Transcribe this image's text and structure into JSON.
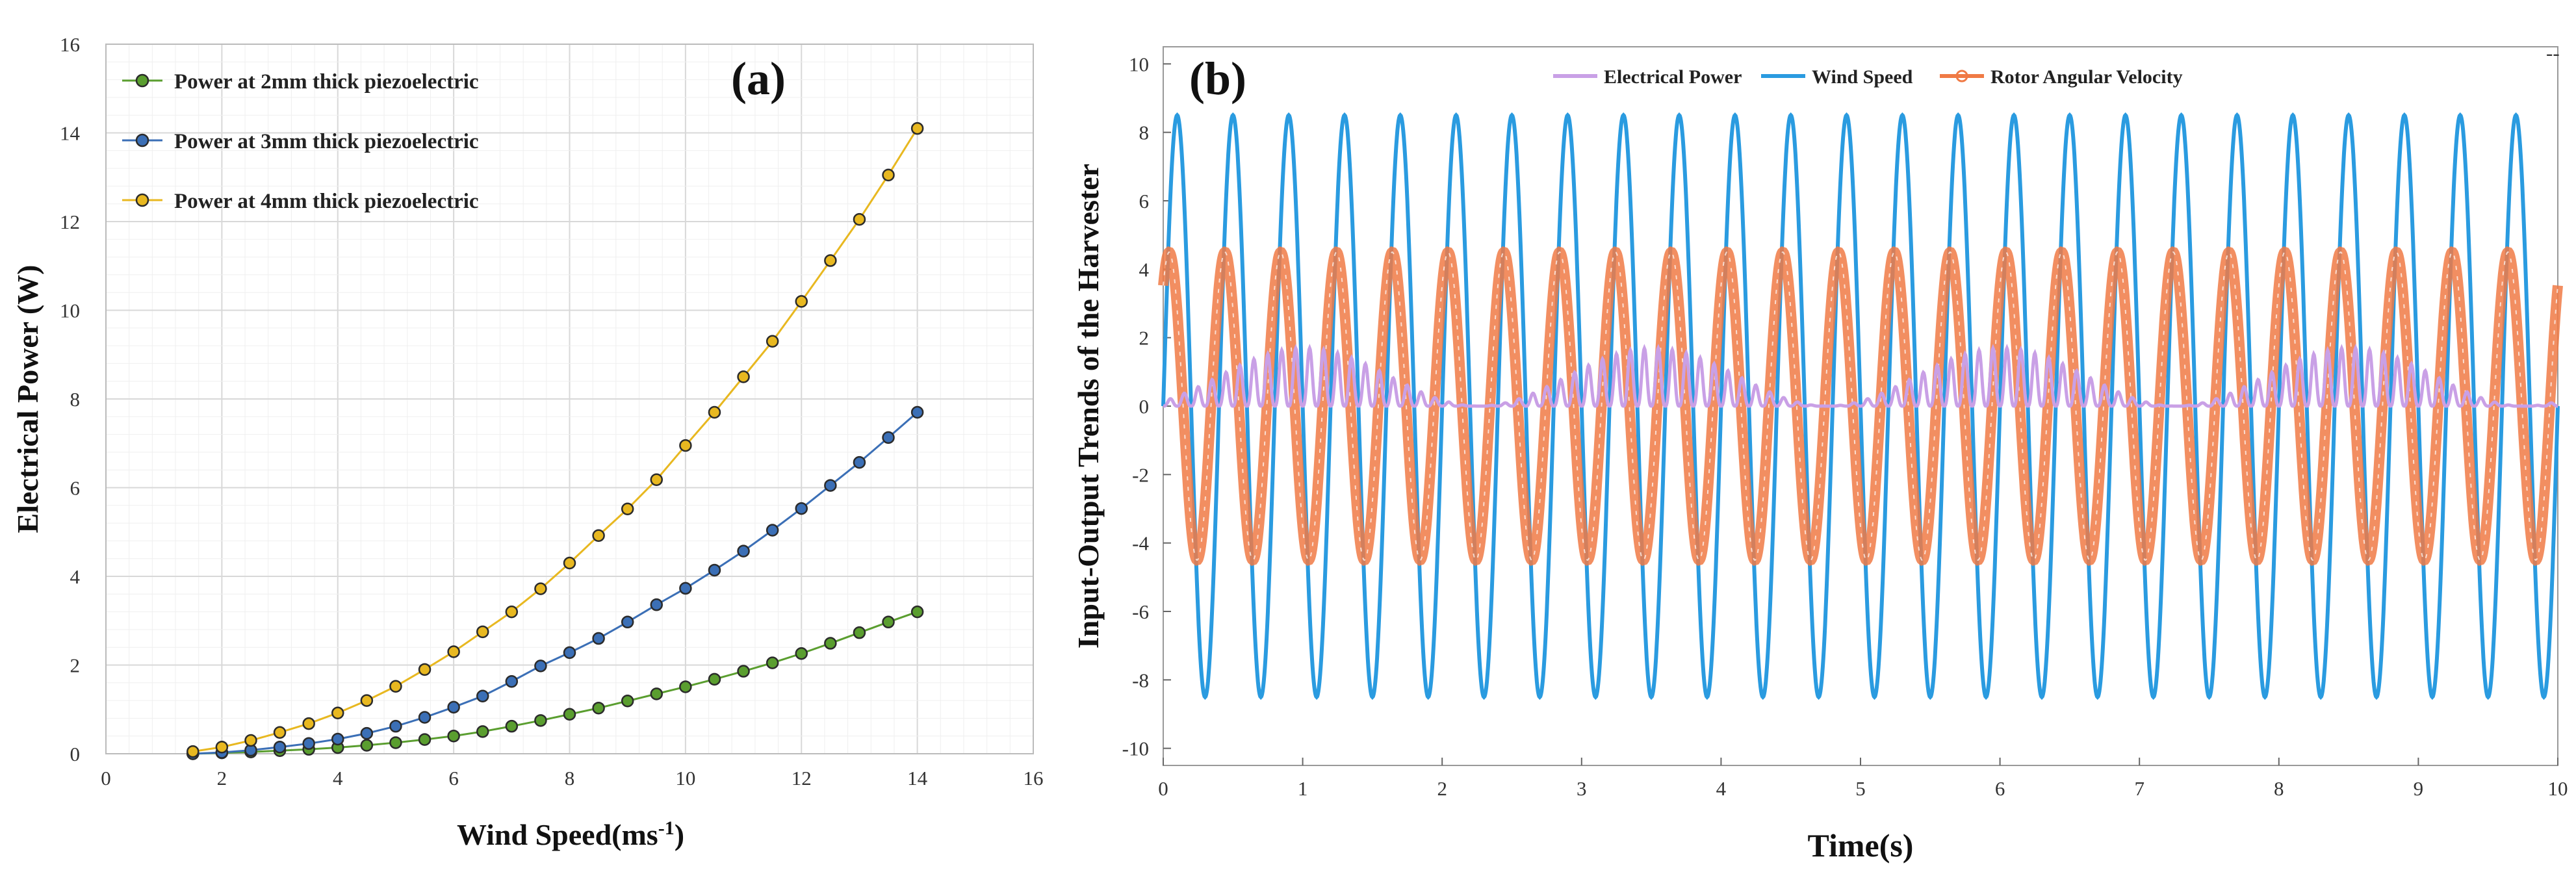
{
  "chart_data": [
    {
      "type": "line",
      "panel_label": "(a)",
      "xlabel": "Wind Speed(ms",
      "xlabel_sup": "-1",
      "xlabel_end": ")",
      "ylabel": "Electrical Power (W)",
      "xlim": [
        0,
        16
      ],
      "ylim": [
        0,
        16
      ],
      "xticks": [
        0,
        2,
        4,
        6,
        8,
        10,
        12,
        14,
        16
      ],
      "yticks": [
        0,
        2,
        4,
        6,
        8,
        10,
        12,
        14,
        16
      ],
      "grid": true,
      "legend_position": "top-left",
      "x": [
        1.5,
        2,
        2.5,
        3,
        3.5,
        4,
        4.5,
        5,
        5.5,
        6,
        6.5,
        7,
        7.5,
        8,
        8.5,
        9,
        9.5,
        10,
        10.5,
        11,
        11.5,
        12,
        12.5,
        13,
        13.5,
        14
      ],
      "series": [
        {
          "name": "Power at 2mm thick piezoelectric",
          "color": "#5a9e2f",
          "values": [
            0.0,
            0.02,
            0.04,
            0.07,
            0.1,
            0.14,
            0.19,
            0.25,
            0.32,
            0.4,
            0.5,
            0.62,
            0.75,
            0.89,
            1.03,
            1.19,
            1.35,
            1.51,
            1.68,
            1.86,
            2.05,
            2.26,
            2.49,
            2.73,
            2.97,
            3.2
          ]
        },
        {
          "name": "Power at 3mm thick piezoelectric",
          "color": "#3b6fb6",
          "values": [
            0.0,
            0.03,
            0.08,
            0.15,
            0.23,
            0.33,
            0.46,
            0.62,
            0.82,
            1.05,
            1.3,
            1.63,
            1.98,
            2.28,
            2.6,
            2.97,
            3.36,
            3.73,
            4.14,
            4.57,
            5.04,
            5.53,
            6.05,
            6.57,
            7.13,
            7.7
          ]
        },
        {
          "name": "Power at 4mm thick piezoelectric",
          "color": "#e8b820",
          "values": [
            0.05,
            0.15,
            0.3,
            0.48,
            0.68,
            0.92,
            1.2,
            1.52,
            1.9,
            2.3,
            2.75,
            3.2,
            3.72,
            4.3,
            4.92,
            5.52,
            6.18,
            6.95,
            7.7,
            8.5,
            9.3,
            10.2,
            11.12,
            12.05,
            13.05,
            14.1
          ]
        }
      ]
    },
    {
      "type": "line",
      "panel_label": "(b)",
      "xlabel": "Time(s)",
      "ylabel": "Input-Output Trends of the Harvester",
      "xlim": [
        0,
        10
      ],
      "ylim": [
        -10.5,
        10.5
      ],
      "xticks": [
        0,
        1,
        2,
        3,
        4,
        5,
        6,
        7,
        8,
        9,
        10
      ],
      "yticks": [
        -10,
        -8,
        -6,
        -4,
        -2,
        0,
        2,
        4,
        6,
        8,
        10
      ],
      "grid": false,
      "legend_position": "top-center",
      "corner_mark": "--",
      "series": [
        {
          "name": "Electrical Power",
          "color": "#c9a0e6",
          "amplitude": 1.7,
          "frequency_hz": 2.5,
          "description_values": {
            "min": 0,
            "max": 1.7
          }
        },
        {
          "name": "Wind Speed",
          "color": "#2a9be0",
          "amplitude": 8.5,
          "frequency_hz": 2.5,
          "description_values": {
            "min": -8.5,
            "max": 8.5
          }
        },
        {
          "name": "Rotor Angular Velocity",
          "color": "#f07a45",
          "amplitude": 4.5,
          "frequency_hz": 2.5,
          "description_values": {
            "min": -4.5,
            "max": 4.5
          }
        }
      ]
    }
  ]
}
